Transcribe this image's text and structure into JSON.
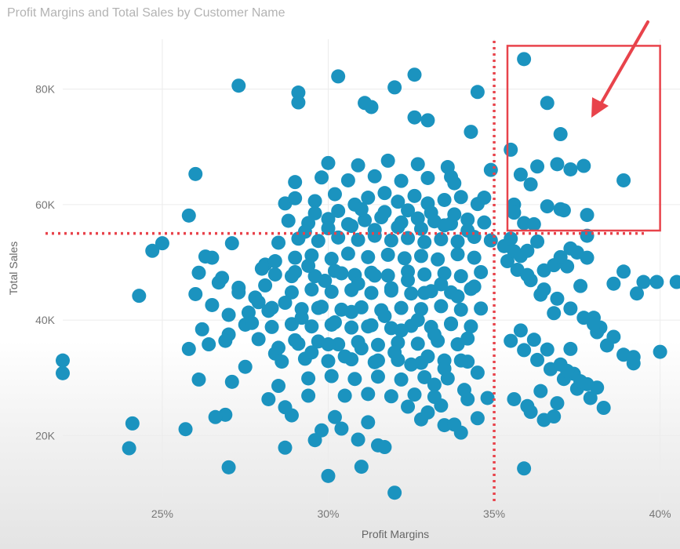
{
  "title": "Profit Margins and Total Sales by Customer Name",
  "colors": {
    "points": "#1b93bf",
    "annotation": "#e8434b",
    "grid": "#ececec"
  },
  "chart_data": {
    "type": "scatter",
    "xlabel": "Profit Margins",
    "ylabel": "Total Sales",
    "xlim": [
      22.0,
      40.6
    ],
    "ylim": [
      8500,
      90000
    ],
    "x_ticks": [
      25,
      30,
      35,
      40
    ],
    "x_tick_labels": [
      "25%",
      "30%",
      "35%",
      "40%"
    ],
    "y_ticks": [
      20000,
      40000,
      60000,
      80000
    ],
    "y_tick_labels": [
      "20K",
      "40K",
      "60K",
      "80K"
    ],
    "grid": true,
    "annotations": {
      "vertical_reference_x": 35.0,
      "horizontal_reference_y": 55000,
      "highlight_box": {
        "x": [
          35.4,
          40.0
        ],
        "y": [
          55500,
          87500
        ]
      },
      "arrow": "pointing into highlight box"
    },
    "x": [
      35.9,
      36.6,
      37.0,
      36.9,
      37.7,
      38.9,
      36.3,
      35.5,
      35.8,
      36.1,
      37.3,
      37.8,
      36.6,
      37.0,
      35.6,
      35.9,
      36.2,
      37.8,
      34.3,
      37.1,
      35.6,
      34.7,
      33.7,
      34.9,
      27.3,
      30.3,
      29.1,
      29.1,
      31.1,
      31.3,
      32.0,
      32.6,
      32.6,
      33.0,
      34.5,
      22.0,
      24.0,
      27.0,
      30.0,
      31.0,
      32.0,
      35.9,
      39.5,
      40.5,
      26.0,
      25.8,
      25.0,
      24.7,
      24.3,
      22.0,
      25.8,
      24.1,
      25.7,
      26.1,
      26.9,
      28.7,
      26.6,
      27.1,
      38.9,
      38.6,
      39.9,
      39.3,
      40.0,
      39.2,
      38.9,
      39.2,
      38.1,
      38.0,
      38.1,
      33.5,
      34.0,
      34.5,
      34.2,
      33.8,
      29.8,
      28.9,
      29.6,
      33.4,
      31.2,
      30.9,
      31.5,
      30.4,
      31.7,
      32.4,
      32.8,
      33.0,
      34.1,
      33.2,
      34.8,
      28.2,
      28.7,
      29.4,
      30.2,
      28.5,
      28.7,
      29.0,
      29.6,
      30.2,
      30.8,
      31.2,
      31.7,
      32.1,
      32.6,
      33.0,
      33.5,
      34.0,
      34.5,
      28.8,
      29.4,
      30.0,
      30.6,
      31.1,
      31.6,
      32.2,
      32.7,
      33.2,
      33.7,
      34.2,
      34.7,
      28.5,
      29.1,
      29.7,
      30.3,
      30.9,
      31.4,
      31.9,
      32.4,
      32.9,
      33.4,
      33.9,
      34.4,
      34.9,
      29.0,
      29.5,
      30.1,
      30.6,
      31.2,
      31.8,
      32.3,
      32.8,
      33.3,
      33.9,
      34.4,
      28.4,
      29.0,
      29.6,
      30.2,
      30.8,
      31.3,
      31.8,
      32.4,
      32.9,
      33.5,
      34.0,
      34.6,
      28.9,
      29.5,
      30.1,
      30.7,
      31.3,
      31.9,
      32.5,
      33.1,
      33.7,
      34.3,
      29.2,
      29.8,
      30.4,
      31.0,
      31.6,
      32.2,
      32.8,
      33.4,
      34.0,
      34.6,
      28.3,
      28.9,
      29.5,
      30.1,
      30.7,
      31.3,
      31.9,
      32.5,
      33.1,
      33.7,
      34.3,
      29.1,
      29.7,
      30.3,
      30.9,
      31.5,
      32.1,
      32.7,
      33.3,
      33.9,
      28.6,
      29.3,
      30.0,
      30.7,
      31.4,
      32.1,
      32.8,
      33.5,
      34.2,
      29.4,
      30.1,
      30.8,
      31.5,
      32.2,
      32.9,
      33.6,
      30.5,
      31.2,
      31.9,
      32.6,
      33.2,
      26.0,
      26.5,
      27.0,
      27.5,
      27.0,
      26.4,
      27.3,
      27.8,
      26.8,
      27.6,
      28.1,
      26.2,
      27.9,
      28.4,
      26.1,
      26.7,
      27.3,
      27.9,
      26.5,
      27.1,
      27.7,
      28.3,
      26.9,
      27.5,
      28.1,
      26.3,
      35.4,
      35.7,
      36.1,
      36.5,
      36.9,
      37.3,
      37.7,
      38.2,
      38.6,
      35.6,
      36.0,
      36.4,
      36.8,
      37.2,
      37.6,
      38.0,
      38.4,
      35.5,
      35.9,
      36.3,
      36.7,
      37.1,
      37.5,
      37.9,
      38.3,
      35.8,
      36.2,
      36.6,
      37.0,
      37.4,
      37.8,
      35.6,
      36.0,
      36.4,
      36.8,
      37.2,
      37.6,
      36.1,
      36.5,
      36.9,
      37.3,
      35.3,
      35.8,
      36.3,
      36.8,
      37.3,
      37.8,
      35.5,
      36.0,
      36.5,
      37.0,
      37.5,
      28.0,
      28.4,
      28.9,
      29.4,
      29.9,
      30.4,
      30.9,
      31.4,
      31.9,
      32.4,
      32.9,
      33.4,
      33.9,
      34.4,
      28.2,
      28.7,
      29.2,
      29.7,
      30.2,
      30.7,
      31.2,
      31.7,
      32.2,
      32.7,
      33.2,
      33.7,
      34.2,
      28.5,
      29.0,
      29.5,
      30.0,
      30.5,
      31.0,
      31.5,
      32.0,
      32.5,
      33.0,
      33.5,
      34.0,
      34.5,
      29.3,
      30.0,
      30.7,
      31.4,
      32.1,
      32.8,
      33.5,
      34.2,
      29.6,
      30.3,
      31.0,
      31.7,
      32.4,
      33.1,
      33.8,
      29.0,
      29.8,
      30.6,
      31.4,
      32.2,
      33.0,
      33.8,
      30.0,
      30.9,
      31.8,
      32.7,
      33.6
    ],
    "y": [
      85200,
      77600,
      72200,
      67000,
      66700,
      64200,
      66600,
      69500,
      65200,
      63500,
      66100,
      58200,
      59700,
      59200,
      60000,
      56800,
      56600,
      54600,
      72600,
      59000,
      58600,
      61200,
      64800,
      66000,
      80600,
      82200,
      79400,
      77700,
      77600,
      76900,
      80300,
      82500,
      75100,
      74600,
      79500,
      30800,
      17800,
      14500,
      13000,
      14600,
      10100,
      14300,
      46600,
      46600,
      65300,
      58100,
      53300,
      52000,
      44200,
      33000,
      35000,
      22100,
      21100,
      29700,
      23600,
      17900,
      23200,
      29300,
      48400,
      46300,
      46600,
      44600,
      34500,
      32500,
      34000,
      33600,
      37900,
      40400,
      28300,
      21800,
      20500,
      23000,
      26300,
      21900,
      20900,
      23500,
      19200,
      25200,
      22300,
      19300,
      18300,
      21200,
      18000,
      25000,
      22800,
      24000,
      27900,
      28800,
      26500,
      26300,
      24900,
      26900,
      23200,
      28600,
      60200,
      61100,
      60600,
      61800,
      60000,
      61200,
      62000,
      60500,
      61500,
      60200,
      60800,
      61300,
      60100,
      57200,
      56800,
      57500,
      56600,
      57300,
      57800,
      56900,
      57600,
      57100,
      56700,
      57400,
      56900,
      53400,
      54100,
      53700,
      54300,
      53900,
      54600,
      53800,
      54200,
      53500,
      54000,
      53600,
      54400,
      53800,
      50800,
      51200,
      50600,
      51500,
      50900,
      51300,
      50700,
      51100,
      50500,
      51400,
      50800,
      47900,
      48300,
      47600,
      48500,
      47800,
      48200,
      47700,
      48400,
      47900,
      48100,
      47600,
      48300,
      44800,
      45300,
      44900,
      45200,
      44700,
      45100,
      44600,
      45000,
      44800,
      45400,
      41900,
      42300,
      41800,
      42200,
      41700,
      42100,
      41900,
      42400,
      41800,
      42000,
      38800,
      39300,
      38900,
      39200,
      38700,
      39100,
      38600,
      39000,
      38800,
      39400,
      38900,
      35900,
      36300,
      35800,
      36200,
      35700,
      36100,
      35900,
      36400,
      35800,
      32800,
      33300,
      32900,
      33200,
      32700,
      33100,
      32600,
      33000,
      32800,
      29900,
      30300,
      29800,
      30200,
      29700,
      30100,
      29900,
      26900,
      27200,
      26800,
      27100,
      26700,
      44500,
      42600,
      40900,
      39200,
      37500,
      35800,
      45600,
      43900,
      47300,
      41300,
      49600,
      38400,
      36700,
      34200,
      48200,
      46500,
      44800,
      43100,
      50800,
      53300,
      39500,
      42100,
      36400,
      31900,
      46000,
      51000,
      50200,
      48700,
      46900,
      45300,
      43700,
      42000,
      40400,
      38700,
      37100,
      51900,
      47800,
      44400,
      41200,
      49300,
      45900,
      39300,
      35600,
      36400,
      34800,
      33100,
      31500,
      29800,
      28100,
      26500,
      24800,
      38200,
      36600,
      34900,
      32300,
      30700,
      28900,
      26300,
      25100,
      27700,
      23300,
      31200,
      29400,
      24100,
      22700,
      25600,
      35000,
      52800,
      51100,
      53600,
      49500,
      52400,
      50800,
      54100,
      52000,
      48600,
      50900,
      51700,
      48900,
      50200,
      47600,
      49400,
      46800,
      48100,
      46300,
      47700,
      45500,
      46900,
      44700,
      46200,
      44100,
      45800,
      41600,
      43000,
      40400,
      42100,
      39600,
      41400,
      38900,
      40700,
      38200,
      40000,
      37500,
      39300,
      36800,
      35200,
      36500,
      34400,
      35800,
      33700,
      35100,
      33000,
      34400,
      32300,
      33700,
      31600,
      33000,
      30900,
      55300,
      55900,
      56300,
      55600,
      56100,
      55800,
      56400,
      55500,
      58500,
      58900,
      59200,
      58700,
      59000,
      58600,
      58300,
      63900,
      64700,
      64200,
      64900,
      64100,
      64600,
      63700,
      67200,
      66800,
      67600,
      67000,
      66500
    ]
  }
}
